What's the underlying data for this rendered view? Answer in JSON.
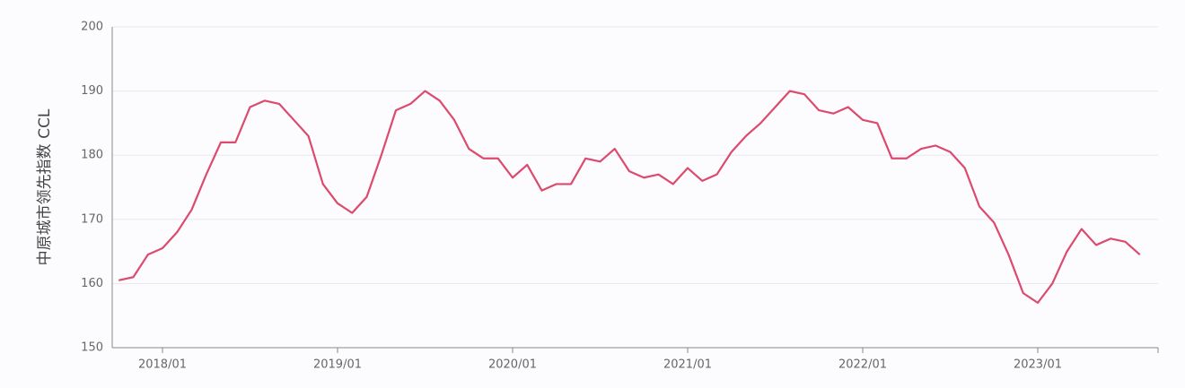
{
  "chart_data": {
    "type": "line",
    "y_label": "中原城市领先指数 CCL",
    "categories": [
      "2017/10",
      "2017/11",
      "2017/12",
      "2018/01",
      "2018/02",
      "2018/03",
      "2018/04",
      "2018/05",
      "2018/06",
      "2018/07",
      "2018/08",
      "2018/09",
      "2018/10",
      "2018/11",
      "2018/12",
      "2019/01",
      "2019/02",
      "2019/03",
      "2019/04",
      "2019/05",
      "2019/06",
      "2019/07",
      "2019/08",
      "2019/09",
      "2019/10",
      "2019/11",
      "2019/12",
      "2020/01",
      "2020/02",
      "2020/03",
      "2020/04",
      "2020/05",
      "2020/06",
      "2020/07",
      "2020/08",
      "2020/09",
      "2020/10",
      "2020/11",
      "2020/12",
      "2021/01",
      "2021/02",
      "2021/03",
      "2021/04",
      "2021/05",
      "2021/06",
      "2021/07",
      "2021/08",
      "2021/09",
      "2021/10",
      "2021/11",
      "2021/12",
      "2022/01",
      "2022/02",
      "2022/03",
      "2022/04",
      "2022/05",
      "2022/06",
      "2022/07",
      "2022/08",
      "2022/09",
      "2022/10",
      "2022/11",
      "2022/12",
      "2023/01",
      "2023/02",
      "2023/03",
      "2023/04",
      "2023/05",
      "2023/06",
      "2023/07",
      "2023/08"
    ],
    "values": [
      160.5,
      161,
      164.5,
      165.5,
      168,
      171.5,
      177,
      182,
      182,
      187.5,
      188.5,
      188,
      185.5,
      183,
      175.5,
      172.5,
      171,
      173.5,
      180,
      187,
      188,
      190,
      188.5,
      185.5,
      181,
      179.5,
      179.5,
      176.5,
      178.5,
      174.5,
      175.5,
      175.5,
      179.5,
      179,
      181,
      177.5,
      176.5,
      177,
      175.5,
      178,
      176,
      177,
      180.5,
      183,
      185,
      187.5,
      190,
      189.5,
      187,
      186.5,
      187.5,
      185.5,
      185,
      179.5,
      179.5,
      181,
      181.5,
      180.5,
      178,
      172,
      169.5,
      164.5,
      158.5,
      157,
      160,
      165,
      168.5,
      166,
      167,
      166.5,
      164.5
    ],
    "color": "#dc4a6e",
    "xticks": [
      "2018/01",
      "2019/01",
      "2020/01",
      "2021/01",
      "2022/01",
      "2023/01"
    ],
    "ylim": [
      150,
      200
    ],
    "yticks": [
      150,
      160,
      170,
      180,
      190,
      200
    ],
    "grid": true
  }
}
